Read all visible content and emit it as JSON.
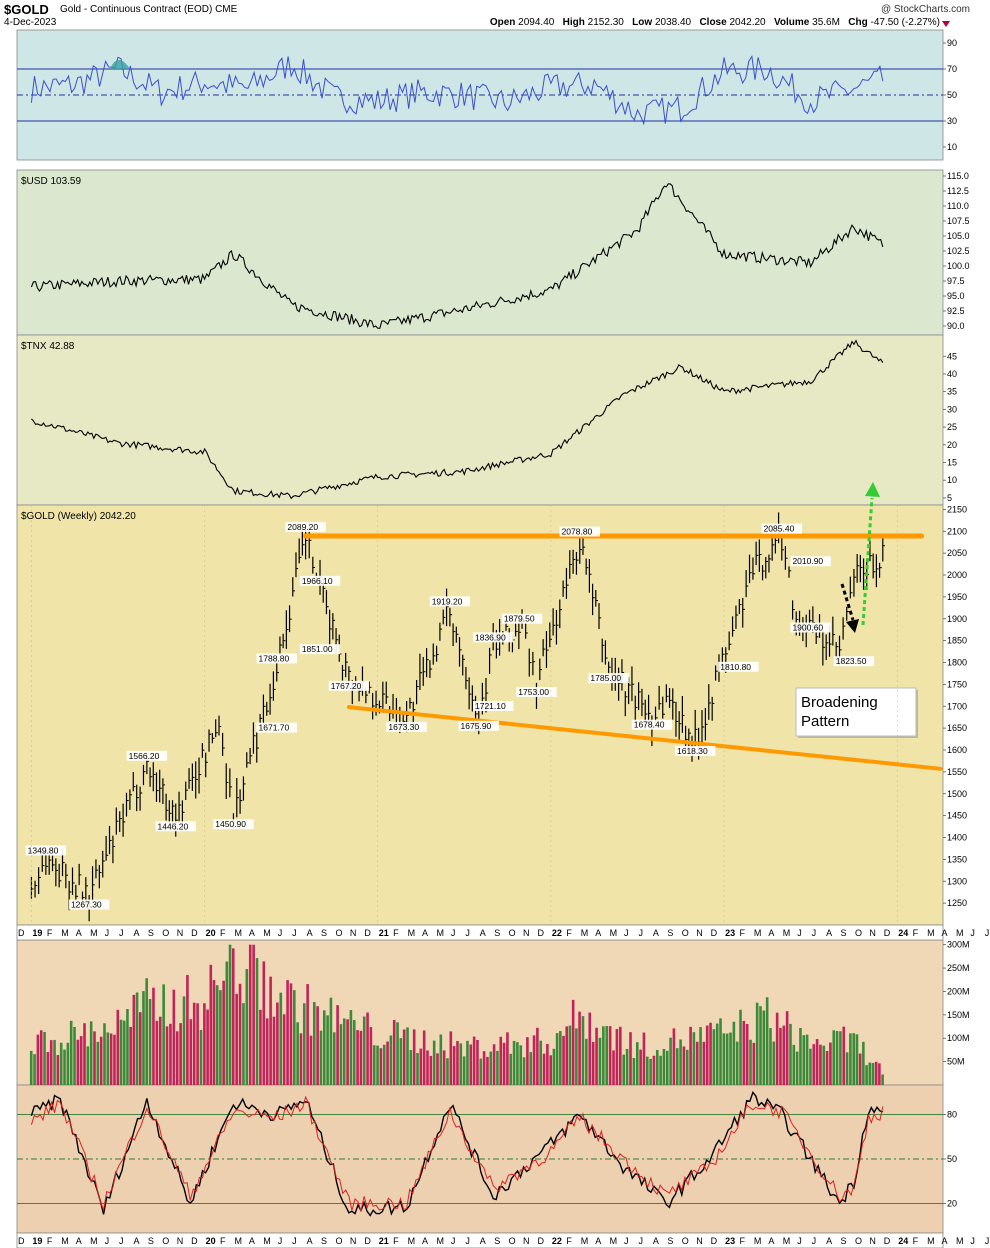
{
  "header": {
    "symbol": "$GOLD",
    "name": "Gold - Continuous Contract (EOD)",
    "exchange": "CME",
    "date": "4-Dec-2023",
    "brand": "@ StockCharts.com",
    "open_label": "Open",
    "open": "2094.40",
    "high_label": "High",
    "high": "2152.30",
    "low_label": "Low",
    "low": "2038.40",
    "close_label": "Close",
    "close": "2042.20",
    "volume_label": "Volume",
    "volume": "35.6M",
    "chg_label": "Chg",
    "chg": "-47.50 (-2.27%)"
  },
  "colors": {
    "rsi_bg": "#cfe6e6",
    "usd_bg": "#dbe8cf",
    "tnx_bg": "#e6e9c4",
    "gold_bg": "#f0e4a8",
    "vol_bg": "#f0d8b6",
    "sto_bg": "#ecd0b0",
    "orange": "#ff9900",
    "up": "#3a8a3a",
    "down": "#c0245a",
    "rsi_line": "#3a4fd0",
    "green_arrow": "#33cc33"
  },
  "chart_data": [
    {
      "type": "line",
      "panel": "rsi",
      "title": "",
      "ylim": [
        0,
        100
      ],
      "ticks": [
        "90",
        "70",
        "50",
        "30",
        "10"
      ],
      "reference_lines": [
        70,
        50,
        30
      ],
      "x": [
        "Jan-19",
        "Apr-19",
        "Jul-19",
        "Oct-19",
        "Jan-20",
        "Apr-20",
        "Jul-20",
        "Oct-20",
        "Jan-21",
        "Apr-21",
        "Jul-21",
        "Oct-21",
        "Jan-22",
        "Apr-22",
        "Jul-22",
        "Oct-22",
        "Jan-23",
        "Apr-23",
        "Jul-23",
        "Oct-23",
        "Dec-23"
      ],
      "series": [
        {
          "values": [
            55,
            58,
            70,
            52,
            60,
            55,
            74,
            48,
            45,
            52,
            50,
            44,
            56,
            58,
            35,
            40,
            68,
            70,
            45,
            55,
            62
          ]
        }
      ]
    },
    {
      "type": "line",
      "panel": "usd",
      "title": "$USD 103.59",
      "ylim": [
        88.5,
        116
      ],
      "ticks": [
        "115.0",
        "112.5",
        "110.0",
        "107.5",
        "105.0",
        "102.5",
        "100.0",
        "97.5",
        "95.0",
        "92.5",
        "90.0"
      ],
      "x": [
        "Jan-19",
        "Jul-19",
        "Jan-20",
        "Mar-20",
        "Jul-20",
        "Jan-21",
        "Jul-21",
        "Jan-22",
        "Jul-22",
        "Sep-22",
        "Jan-23",
        "Jul-23",
        "Oct-23",
        "Dec-23"
      ],
      "values": [
        96.5,
        97.5,
        97.8,
        102.0,
        93.5,
        90.0,
        92.8,
        96.0,
        106.0,
        114.0,
        102.0,
        100.5,
        106.5,
        103.59
      ]
    },
    {
      "type": "line",
      "panel": "tnx",
      "title": "$TNX 42.88",
      "ylim": [
        3,
        51
      ],
      "ticks": [
        "50",
        "45",
        "40",
        "35",
        "30",
        "25",
        "20",
        "15",
        "10",
        "5"
      ],
      "x": [
        "Jan-19",
        "Jul-19",
        "Jan-20",
        "Mar-20",
        "Jul-20",
        "Jan-21",
        "Jul-21",
        "Jan-22",
        "Jun-22",
        "Oct-22",
        "Jan-23",
        "Jul-23",
        "Oct-23",
        "Dec-23"
      ],
      "values": [
        27.0,
        20.5,
        18.0,
        7.0,
        5.5,
        11.0,
        12.5,
        17.5,
        34.0,
        42.0,
        35.0,
        38.0,
        49.0,
        42.88
      ]
    },
    {
      "type": "line",
      "panel": "gold",
      "title": "$GOLD (Weekly) 2042.20",
      "ylim": [
        1200,
        2160
      ],
      "ticks": [
        "2150",
        "2100",
        "2050",
        "2000",
        "1950",
        "1900",
        "1850",
        "1800",
        "1750",
        "1700",
        "1650",
        "1600",
        "1550",
        "1500",
        "1450",
        "1400",
        "1350",
        "1300",
        "1250",
        "1200"
      ],
      "x": [
        "Jan-19",
        "Feb-19",
        "May-19",
        "Sep-19",
        "Nov-19",
        "Feb-20",
        "Mar-20",
        "Jun-20",
        "Aug-20",
        "Sep-20",
        "Nov-20",
        "Mar-21",
        "Jun-21",
        "Aug-21",
        "Sep-21",
        "Nov-21",
        "Dec-21",
        "Mar-22",
        "May-22",
        "Aug-22",
        "Sep-22",
        "Nov-22",
        "Mar-23",
        "May-23",
        "Jun-23",
        "Sep-23",
        "Oct-23",
        "Dec-23"
      ],
      "values": [
        1285,
        1349.8,
        1267.3,
        1566.2,
        1446.2,
        1660,
        1450.9,
        1788.8,
        2089.2,
        1966.1,
        1767.2,
        1673.3,
        1919.2,
        1675.9,
        1836.9,
        1879.5,
        1753,
        2078.8,
        1785,
        1678.4,
        1720,
        1618.3,
        2010,
        2085.4,
        1900.6,
        1823.5,
        1990,
        2042.2
      ],
      "annotations": [
        {
          "text": "2089.20",
          "date": "Aug-20",
          "price": 2089.2,
          "pos": "above"
        },
        {
          "text": "1966.10",
          "date": "Sep-20",
          "price": 1966.1,
          "pos": "above"
        },
        {
          "text": "1851.00",
          "date": "Sep-20",
          "price": 1851.0,
          "pos": "below"
        },
        {
          "text": "1767.20",
          "date": "Nov-20",
          "price": 1767.2,
          "pos": "below"
        },
        {
          "text": "1788.80",
          "date": "Jun-20",
          "price": 1788.8,
          "pos": "above"
        },
        {
          "text": "1671.70",
          "date": "Jun-20",
          "price": 1671.7,
          "pos": "below"
        },
        {
          "text": "1566.20",
          "date": "Sep-19",
          "price": 1566.2,
          "pos": "above"
        },
        {
          "text": "1446.20",
          "date": "Nov-19",
          "price": 1446.2,
          "pos": "below"
        },
        {
          "text": "1450.90",
          "date": "Mar-20",
          "price": 1450.9,
          "pos": "below"
        },
        {
          "text": "1349.80",
          "date": "Feb-19",
          "price": 1349.8,
          "pos": "above"
        },
        {
          "text": "1267.30",
          "date": "May-19",
          "price": 1267.3,
          "pos": "below"
        },
        {
          "text": "1673.30",
          "date": "Mar-21",
          "price": 1673.3,
          "pos": "below"
        },
        {
          "text": "1919.20",
          "date": "Jun-21",
          "price": 1919.2,
          "pos": "above"
        },
        {
          "text": "1675.90",
          "date": "Aug-21",
          "price": 1675.9,
          "pos": "below"
        },
        {
          "text": "1721.10",
          "date": "Sep-21",
          "price": 1721.1,
          "pos": "below"
        },
        {
          "text": "1836.90",
          "date": "Sep-21",
          "price": 1836.9,
          "pos": "above"
        },
        {
          "text": "1879.50",
          "date": "Nov-21",
          "price": 1879.5,
          "pos": "above"
        },
        {
          "text": "1753.00",
          "date": "Dec-21",
          "price": 1753.0,
          "pos": "below"
        },
        {
          "text": "2078.80",
          "date": "Mar-22",
          "price": 2078.8,
          "pos": "above"
        },
        {
          "text": "1785.00",
          "date": "May-22",
          "price": 1785.0,
          "pos": "below"
        },
        {
          "text": "1678.40",
          "date": "Aug-22",
          "price": 1678.4,
          "pos": "below"
        },
        {
          "text": "1618.30",
          "date": "Nov-22",
          "price": 1618.3,
          "pos": "below"
        },
        {
          "text": "1810.80",
          "date": "Feb-23",
          "price": 1810.8,
          "pos": "below"
        },
        {
          "text": "2085.40",
          "date": "May-23",
          "price": 2085.4,
          "pos": "above"
        },
        {
          "text": "2010.90",
          "date": "Jul-23",
          "price": 2010.9,
          "pos": "above"
        },
        {
          "text": "1900.60",
          "date": "Jul-23",
          "price": 1900.6,
          "pos": "below"
        },
        {
          "text": "1823.50",
          "date": "Oct-23",
          "price": 1823.5,
          "pos": "below"
        }
      ],
      "callout": "Broadening Pattern",
      "resistance_line": {
        "from": [
          "Aug-20",
          2089.2
        ],
        "to": [
          "Feb-24",
          2089.2
        ]
      },
      "support_line": {
        "from": [
          "Nov-20",
          1698
        ],
        "to": [
          "Apr-24",
          1557
        ]
      }
    },
    {
      "type": "bar",
      "panel": "volume",
      "title": "",
      "ylim": [
        0,
        310
      ],
      "ticks": [
        "300M",
        "250M",
        "200M",
        "150M",
        "100M",
        "50M"
      ],
      "x": [
        "Jan-19",
        "Jul-19",
        "Sep-19",
        "Jan-20",
        "Mar-20",
        "Jul-20",
        "Jan-21",
        "Jul-21",
        "Jan-22",
        "Mar-22",
        "Jul-22",
        "Jan-23",
        "Apr-23",
        "Jul-23",
        "Oct-23",
        "Dec-23"
      ],
      "values": [
        100,
        150,
        200,
        210,
        310,
        205,
        130,
        95,
        110,
        175,
        95,
        130,
        170,
        105,
        110,
        35
      ]
    },
    {
      "type": "line",
      "panel": "stochastic",
      "title": "",
      "ylim": [
        0,
        100
      ],
      "ticks": [
        "80",
        "50",
        "20"
      ],
      "reference_lines": [
        80,
        50,
        20
      ],
      "x": [
        "Jan-19",
        "Mar-19",
        "Jun-19",
        "Sep-19",
        "Dec-19",
        "Mar-20",
        "Jun-20",
        "Aug-20",
        "Nov-20",
        "Mar-21",
        "Jun-21",
        "Sep-21",
        "Jan-22",
        "Mar-22",
        "Jun-22",
        "Sep-22",
        "Dec-22",
        "Mar-23",
        "May-23",
        "Sep-23",
        "Oct-23",
        "Nov-23",
        "Dec-23"
      ],
      "series": [
        {
          "values": [
            80,
            90,
            15,
            90,
            20,
            88,
            80,
            90,
            15,
            18,
            88,
            25,
            60,
            80,
            45,
            20,
            50,
            92,
            80,
            20,
            35,
            85,
            80
          ]
        },
        {
          "values": [
            75,
            88,
            20,
            86,
            25,
            82,
            78,
            88,
            20,
            20,
            82,
            30,
            55,
            78,
            50,
            25,
            45,
            88,
            82,
            25,
            30,
            78,
            82
          ]
        }
      ]
    }
  ],
  "x_axis": {
    "labels": [
      "D",
      "19",
      "F",
      "M",
      "A",
      "M",
      "J",
      "J",
      "A",
      "S",
      "O",
      "N",
      "D",
      "20",
      "F",
      "M",
      "A",
      "M",
      "J",
      "J",
      "A",
      "S",
      "O",
      "N",
      "D",
      "21",
      "F",
      "M",
      "A",
      "M",
      "J",
      "J",
      "A",
      "S",
      "O",
      "N",
      "D",
      "22",
      "F",
      "M",
      "A",
      "M",
      "J",
      "J",
      "A",
      "S",
      "O",
      "N",
      "D",
      "23",
      "F",
      "M",
      "A",
      "M",
      "J",
      "J",
      "A",
      "S",
      "O",
      "N",
      "D",
      "24",
      "F",
      "M",
      "A",
      "M",
      "J",
      "J"
    ],
    "bold": [
      "19",
      "20",
      "21",
      "22",
      "23",
      "24"
    ]
  }
}
